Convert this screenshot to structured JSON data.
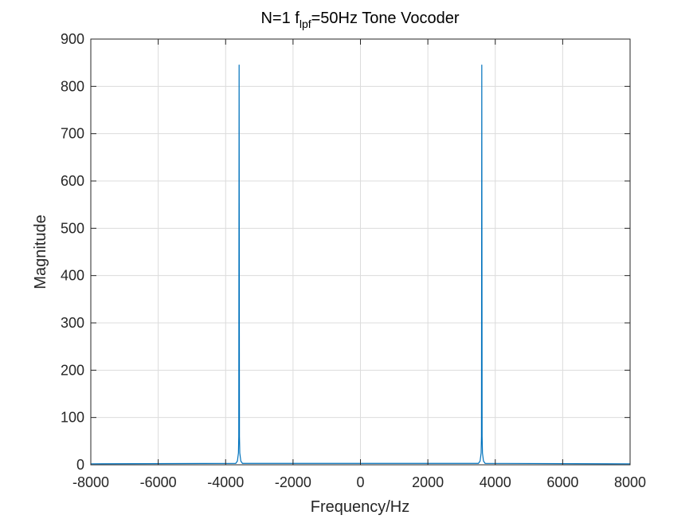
{
  "chart_data": {
    "type": "line",
    "title": {
      "prefix": "N=1 f",
      "subscript": "lpf",
      "suffix": "=50Hz Tone Vocoder"
    },
    "xlabel": "Frequency/Hz",
    "ylabel": "Magnitude",
    "xlim": [
      -8000,
      8000
    ],
    "ylim": [
      0,
      900
    ],
    "xticks": [
      -8000,
      -6000,
      -4000,
      -2000,
      0,
      2000,
      4000,
      6000,
      8000
    ],
    "yticks": [
      0,
      100,
      200,
      300,
      400,
      500,
      600,
      700,
      800,
      900
    ],
    "grid": true,
    "series": [
      {
        "color": "#0072BD",
        "x": [
          -8000,
          -3700,
          -3650,
          -3620,
          -3610,
          -3600,
          -3590,
          -3580,
          -3550,
          -3500,
          3500,
          3550,
          3580,
          3590,
          3600,
          3610,
          3620,
          3650,
          3700,
          8000
        ],
        "y": [
          2,
          3,
          8,
          25,
          60,
          845,
          60,
          25,
          8,
          3,
          3,
          8,
          25,
          60,
          845,
          60,
          25,
          8,
          3,
          2
        ]
      }
    ]
  }
}
